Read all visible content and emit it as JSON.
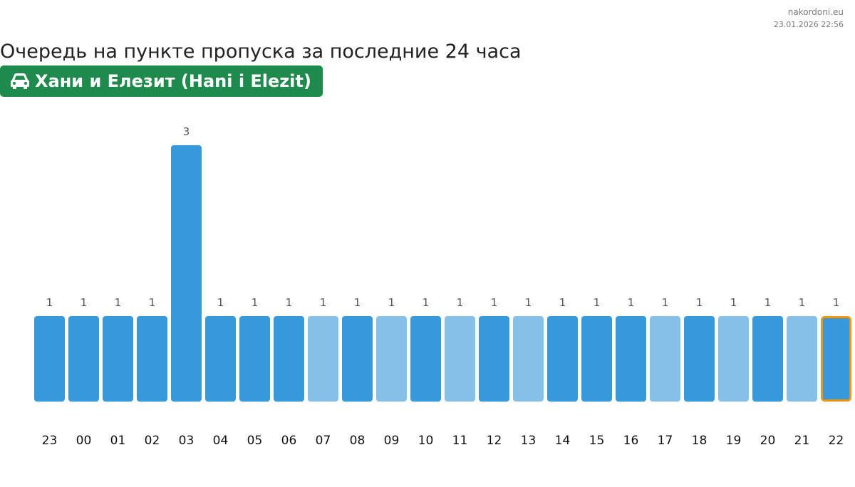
{
  "site": "nakordoni.eu",
  "timestamp": "23.01.2026 22:56",
  "title": "Очередь на пункте пропуска за последние 24 часа",
  "checkpoint": {
    "name": "Хани и Елезит (Hani i Elezit)",
    "icon": "car-icon",
    "color": "#1e8a4c"
  },
  "colors": {
    "bar": "#3898dc",
    "bar_light": "#86c0e9",
    "highlight_border": "#f0960e",
    "value_label": "#555555",
    "tick_label": "#111111"
  },
  "chart_data": {
    "type": "bar",
    "categories": [
      "23",
      "00",
      "01",
      "02",
      "03",
      "04",
      "05",
      "06",
      "07",
      "08",
      "09",
      "10",
      "11",
      "12",
      "13",
      "14",
      "15",
      "16",
      "17",
      "18",
      "19",
      "20",
      "21",
      "22"
    ],
    "values": [
      1,
      1,
      1,
      1,
      3,
      1,
      1,
      1,
      1,
      1,
      1,
      1,
      1,
      1,
      1,
      1,
      1,
      1,
      1,
      1,
      1,
      1,
      1,
      1
    ],
    "light": [
      false,
      false,
      false,
      false,
      false,
      false,
      false,
      false,
      true,
      false,
      true,
      false,
      true,
      false,
      true,
      false,
      false,
      false,
      true,
      false,
      true,
      false,
      true,
      false
    ],
    "highlighted_index": 23,
    "ylim": [
      0,
      3
    ],
    "grid": false,
    "legend": "none"
  }
}
